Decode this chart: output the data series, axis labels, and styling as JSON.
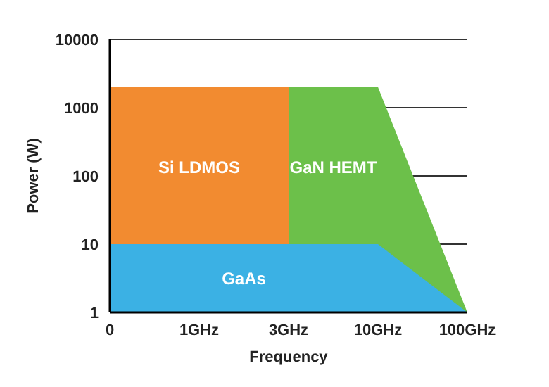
{
  "chart_data": {
    "type": "area",
    "xlabel": "Frequency",
    "ylabel": "Power (W)",
    "categories": [
      "0",
      "1GHz",
      "3GHz",
      "10GHz",
      "100GHz"
    ],
    "series": [
      {
        "name": "GaN HEMT",
        "color": "#6cc04a",
        "values": [
          null,
          null,
          2000,
          2000,
          1
        ]
      },
      {
        "name": "Si LDMOS",
        "color": "#f28b30",
        "values": [
          2000,
          2000,
          2000,
          null,
          null
        ]
      },
      {
        "name": "GaAs",
        "color": "#3bb1e4",
        "values": [
          10,
          10,
          10,
          10,
          1
        ]
      }
    ],
    "log": "y",
    "ylim": [
      1,
      10000
    ],
    "yticks": [
      1,
      10,
      100,
      1000,
      10000
    ],
    "grid": "y"
  }
}
